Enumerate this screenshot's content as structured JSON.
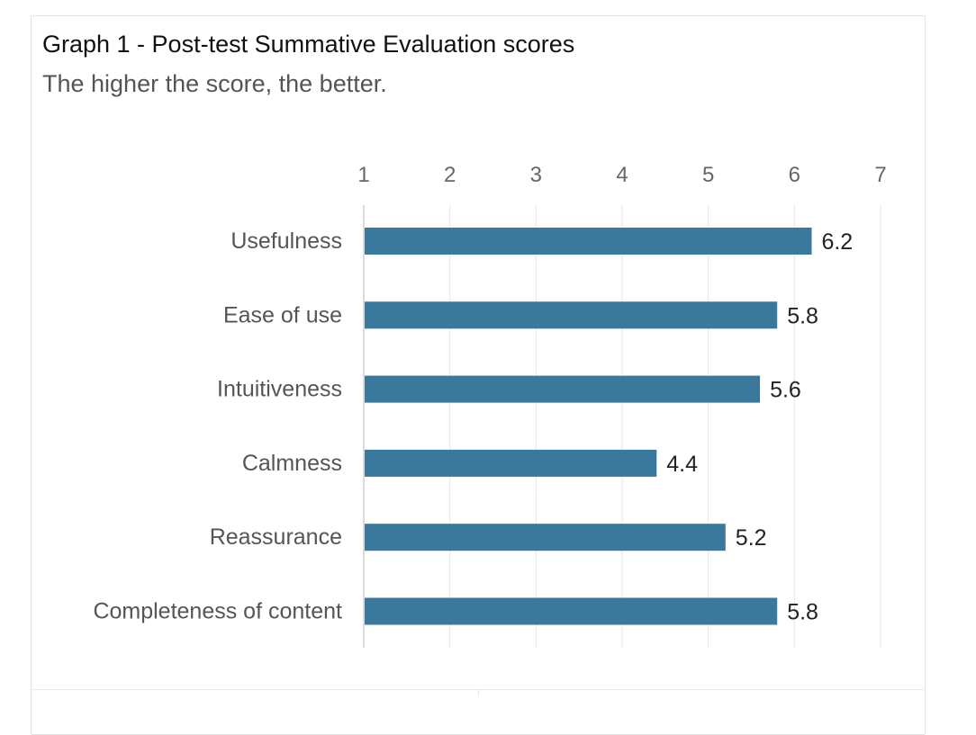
{
  "chart_data": {
    "type": "bar",
    "orientation": "horizontal",
    "title": "Graph 1 - Post-test Summative Evaluation scores",
    "subtitle": "The higher the score, the better.",
    "categories": [
      "Usefulness",
      "Ease of use",
      "Intuitiveness",
      "Calmness",
      "Reassurance",
      "Completeness of content"
    ],
    "values": [
      6.2,
      5.8,
      5.6,
      4.4,
      5.2,
      5.8
    ],
    "data_labels": [
      "6.2",
      "5.8",
      "5.6",
      "4.4",
      "5.2",
      "5.8"
    ],
    "xlim": [
      1,
      7
    ],
    "x_ticks": [
      1,
      2,
      3,
      4,
      5,
      6,
      7
    ],
    "x_tick_labels": [
      "1",
      "2",
      "3",
      "4",
      "5",
      "6",
      "7"
    ],
    "x_axis_position": "top",
    "grid": true,
    "legend": false,
    "bar_color": "#3a789c",
    "grid_color": "#e6e6e6"
  }
}
